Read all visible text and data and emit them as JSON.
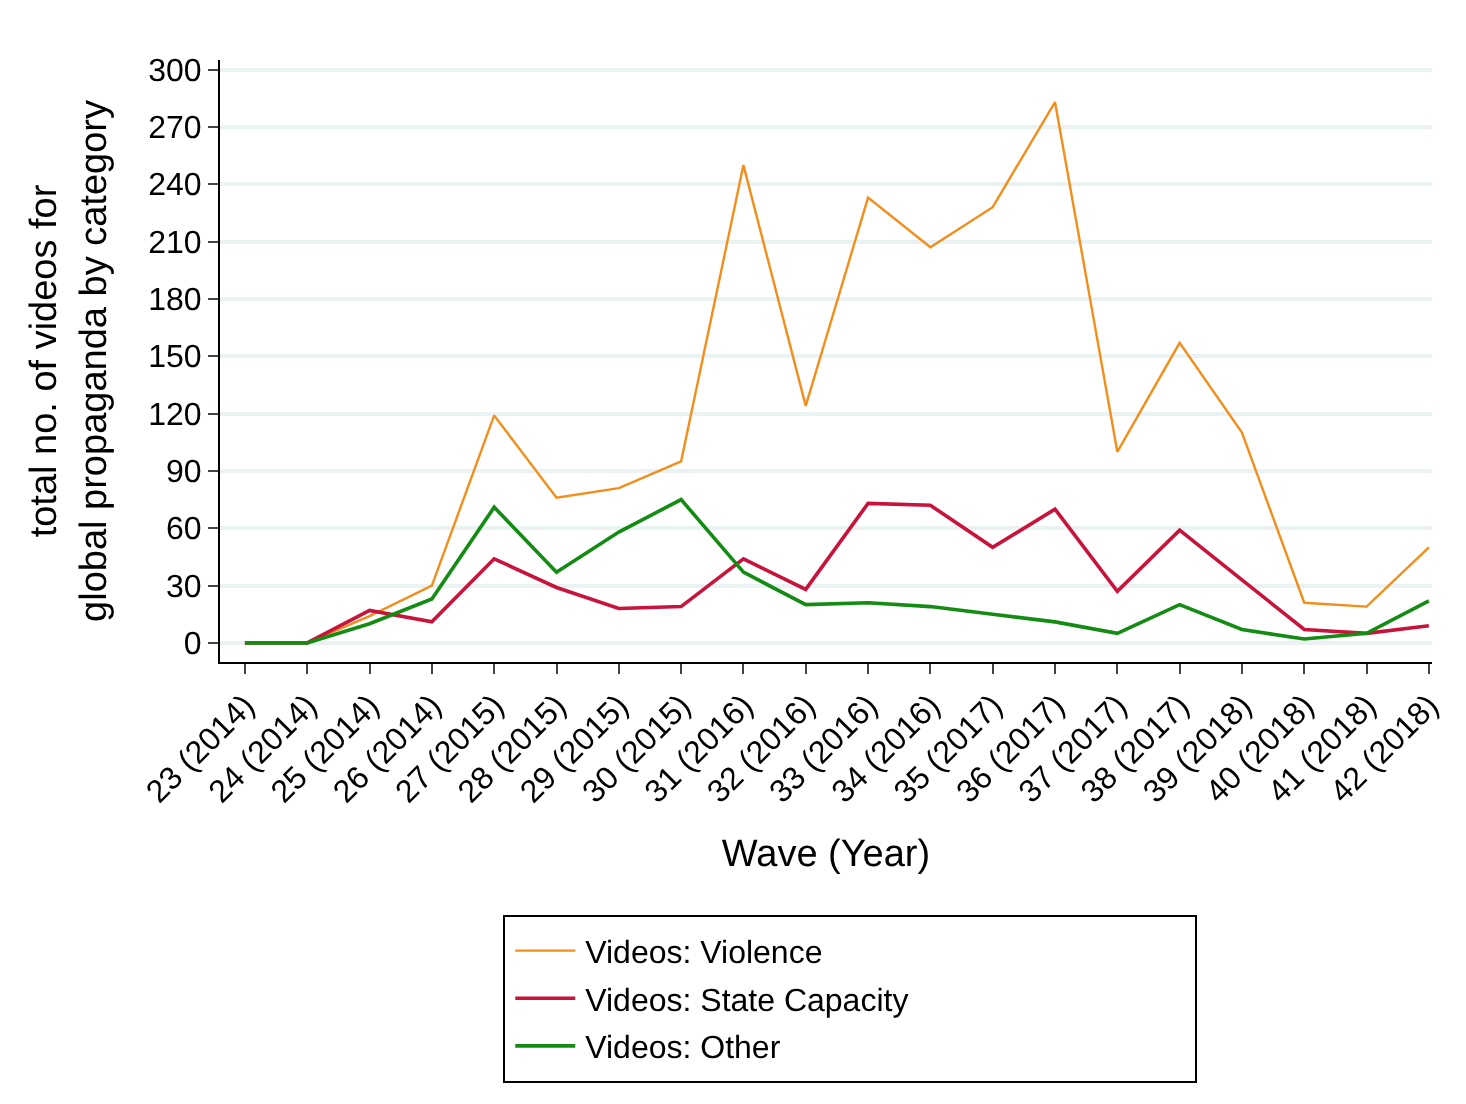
{
  "chart_data": {
    "type": "line",
    "xlabel": "Wave (Year)",
    "ylabel": "total no. of videos for\nglobal propaganda by category",
    "categories": [
      "23 (2014)",
      "24 (2014)",
      "25 (2014)",
      "26 (2014)",
      "27 (2015)",
      "28 (2015)",
      "29 (2015)",
      "30 (2015)",
      "31 (2016)",
      "32 (2016)",
      "33 (2016)",
      "34 (2016)",
      "35 (2017)",
      "36 (2017)",
      "37 (2017)",
      "38 (2017)",
      "39 (2018)",
      "40 (2018)",
      "41 (2018)",
      "42 (2018)"
    ],
    "series": [
      {
        "name": "Videos: Violence",
        "color": "#f28e1c",
        "values": [
          0,
          0,
          14,
          30,
          119,
          76,
          81,
          95,
          250,
          124,
          233,
          207,
          228,
          283,
          100,
          157,
          110,
          21,
          19,
          50
        ]
      },
      {
        "name": "Videos: State Capacity",
        "color": "#c8143c",
        "values": [
          0,
          0,
          17,
          11,
          44,
          29,
          18,
          19,
          44,
          28,
          73,
          72,
          50,
          70,
          27,
          59,
          33,
          7,
          5,
          9
        ]
      },
      {
        "name": "Videos: Other",
        "color": "#148c14",
        "values": [
          0,
          0,
          10,
          23,
          71,
          37,
          58,
          75,
          37,
          20,
          21,
          19,
          15,
          11,
          5,
          20,
          7,
          2,
          5,
          22
        ]
      }
    ],
    "ylim": [
      -10,
      305
    ],
    "yticks": [
      0,
      30,
      60,
      90,
      120,
      150,
      180,
      210,
      240,
      270,
      300
    ],
    "grid": "y",
    "legend": "bottom",
    "marker": "none",
    "line_style": "solid"
  }
}
